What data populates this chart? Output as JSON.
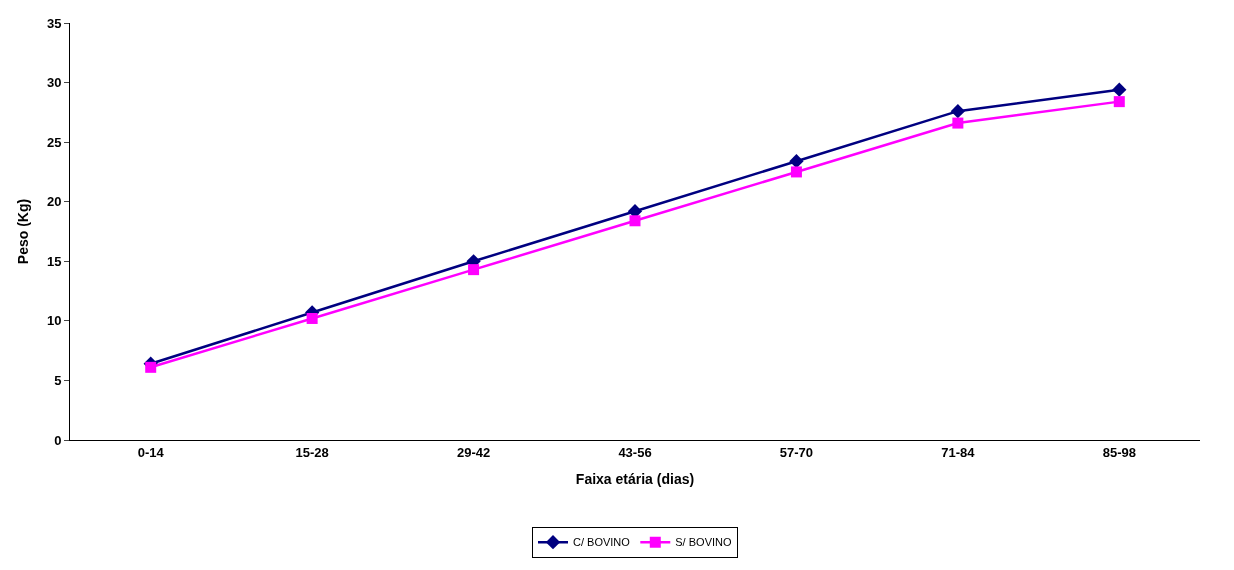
{
  "chart_data": {
    "type": "line",
    "xlabel": "Faixa etária (dias)",
    "ylabel": "Peso (Kg)",
    "categories": [
      "0-14",
      "15-28",
      "29-42",
      "43-56",
      "57-70",
      "71-84",
      "85-98"
    ],
    "series": [
      {
        "name": "C/ BOVINO",
        "color": "#000080",
        "marker": "diamond",
        "values": [
          6.4,
          10.7,
          15.0,
          19.2,
          23.4,
          27.6,
          29.4
        ]
      },
      {
        "name": "S/ BOVINO",
        "color": "#ff00ff",
        "marker": "square",
        "values": [
          6.1,
          10.2,
          14.3,
          18.4,
          22.5,
          26.6,
          28.4
        ]
      }
    ],
    "ylim": [
      0,
      35
    ],
    "yticks": [
      0,
      5,
      10,
      15,
      20,
      25,
      30,
      35
    ],
    "legend": "bottom",
    "line_style": "solid"
  }
}
